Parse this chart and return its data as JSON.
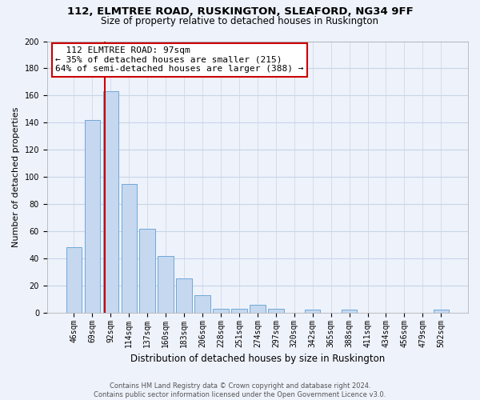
{
  "title1": "112, ELMTREE ROAD, RUSKINGTON, SLEAFORD, NG34 9FF",
  "title2": "Size of property relative to detached houses in Ruskington",
  "xlabel": "Distribution of detached houses by size in Ruskington",
  "ylabel": "Number of detached properties",
  "bar_labels": [
    "46sqm",
    "69sqm",
    "92sqm",
    "114sqm",
    "137sqm",
    "160sqm",
    "183sqm",
    "206sqm",
    "228sqm",
    "251sqm",
    "274sqm",
    "297sqm",
    "320sqm",
    "342sqm",
    "365sqm",
    "388sqm",
    "411sqm",
    "434sqm",
    "456sqm",
    "479sqm",
    "502sqm"
  ],
  "bar_heights": [
    48,
    142,
    163,
    95,
    62,
    42,
    25,
    13,
    3,
    3,
    6,
    3,
    0,
    2,
    0,
    2,
    0,
    0,
    0,
    0,
    2
  ],
  "bar_color": "#c5d8f0",
  "bar_edge_color": "#6fa8d8",
  "vline_color": "#cc0000",
  "annotation_title": "112 ELMTREE ROAD: 97sqm",
  "annotation_line1": "← 35% of detached houses are smaller (215)",
  "annotation_line2": "64% of semi-detached houses are larger (388) →",
  "annotation_box_color": "white",
  "annotation_box_edge": "#cc0000",
  "ylim": [
    0,
    200
  ],
  "yticks": [
    0,
    20,
    40,
    60,
    80,
    100,
    120,
    140,
    160,
    180,
    200
  ],
  "footer1": "Contains HM Land Registry data © Crown copyright and database right 2024.",
  "footer2": "Contains public sector information licensed under the Open Government Licence v3.0.",
  "bg_color": "#eef2fb",
  "grid_color": "#c8d4e8",
  "title1_fontsize": 9.5,
  "title2_fontsize": 8.5,
  "ylabel_fontsize": 8,
  "xlabel_fontsize": 8.5,
  "tick_fontsize": 7,
  "annotation_fontsize": 8,
  "footer_fontsize": 6
}
